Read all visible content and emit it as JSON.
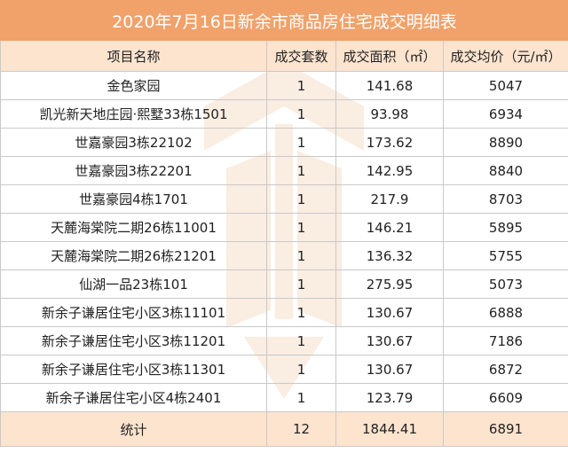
{
  "title": "2020年7月16日新余市商品房住宅成交明细表",
  "headers": [
    "项目名称",
    "成交套数",
    "成交面积（㎡）",
    "成交均价（元/㎡）"
  ],
  "rows": [
    [
      "金色家园",
      "1",
      "141.68",
      "5047"
    ],
    [
      "凯光新天地庄园·熙墅33栋1501",
      "1",
      "93.98",
      "6934"
    ],
    [
      "世嘉豪园3栋22102",
      "1",
      "173.62",
      "8890"
    ],
    [
      "世嘉豪园3栋22201",
      "1",
      "142.95",
      "8840"
    ],
    [
      "世嘉豪园4栋1701",
      "1",
      "217.9",
      "8703"
    ],
    [
      "天麓海棠院二期26栋11001",
      "1",
      "146.21",
      "5895"
    ],
    [
      "天麓海棠院二期26栋21201",
      "1",
      "136.32",
      "5755"
    ],
    [
      "仙湖一品23栋101",
      "1",
      "275.95",
      "5073"
    ],
    [
      "新余子谦居住宅小区3栋11101",
      "1",
      "130.67",
      "6888"
    ],
    [
      "新余子谦居住宅小区3栋11201",
      "1",
      "130.67",
      "7186"
    ],
    [
      "新余子谦居住宅小区3栋11301",
      "1",
      "130.67",
      "6872"
    ],
    [
      "新余子谦居住宅小区4栋2401",
      "1",
      "123.79",
      "6609"
    ]
  ],
  "total": [
    "统计",
    "12",
    "1844.41",
    "6891"
  ],
  "colors": {
    "title_bg": "#f0a26a",
    "header_bg": "#fde4cf",
    "watermark": "#f0a26a"
  }
}
